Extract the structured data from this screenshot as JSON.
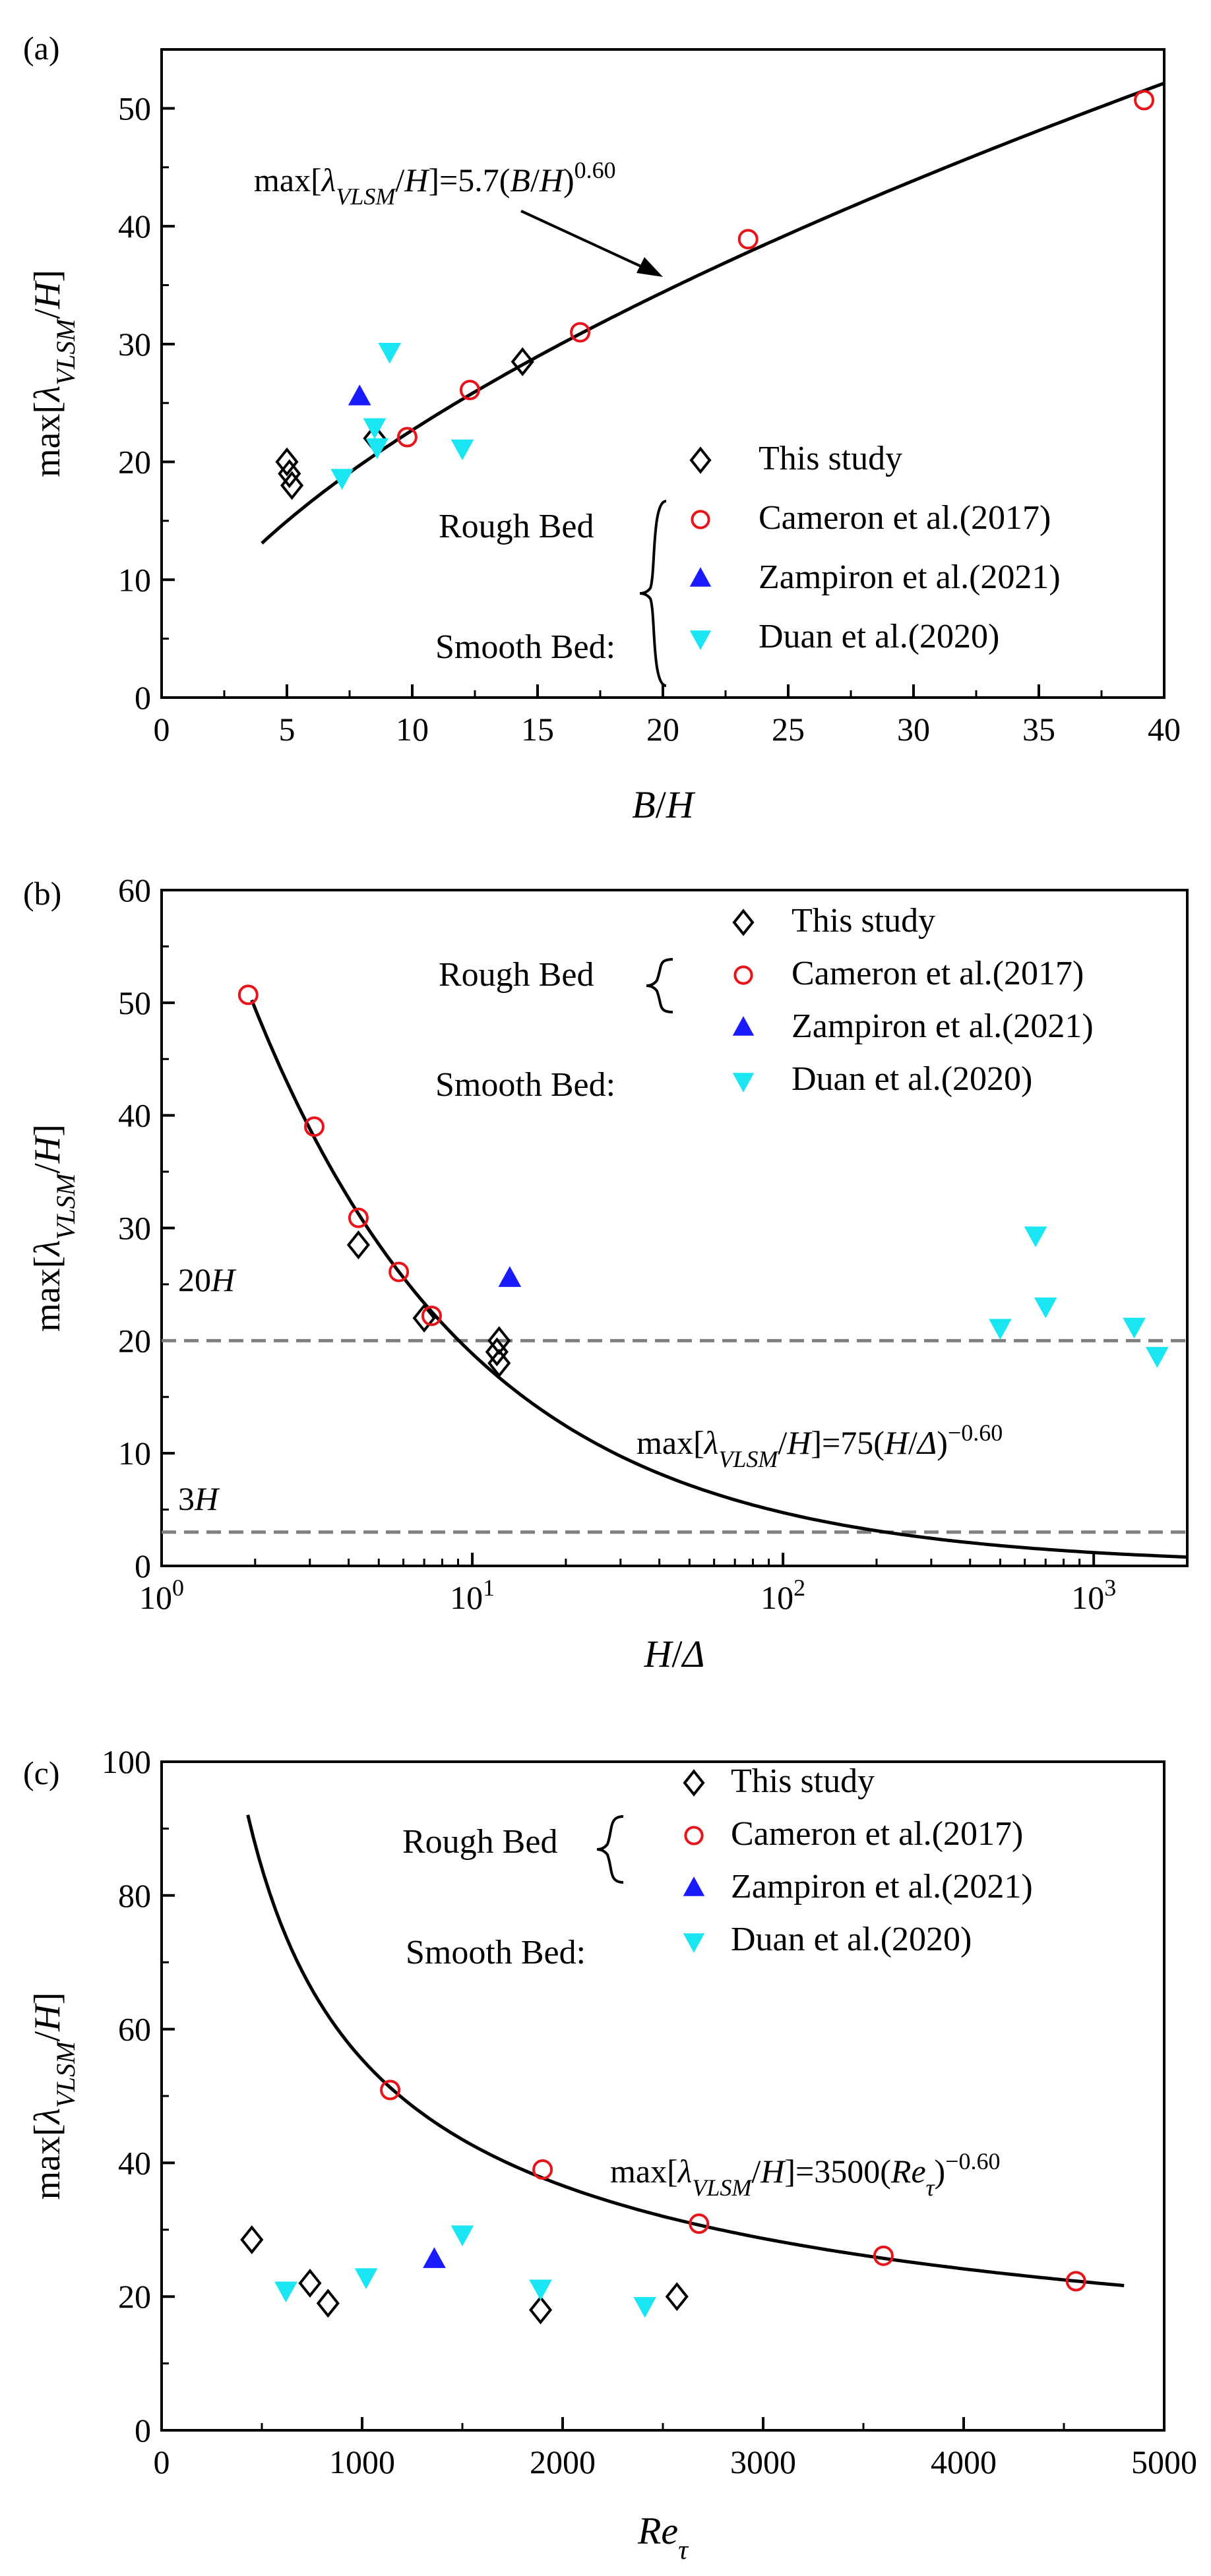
{
  "colors": {
    "axis": "#000000",
    "fit_line": "#000000",
    "dashed": "#7f7f7f",
    "this_study": "#000000",
    "cameron": "#e8141b",
    "zampiron": "#1a1aff",
    "duan": "#19e6f2"
  },
  "legend": {
    "rough_bed": "Rough Bed",
    "smooth_bed": "Smooth Bed:",
    "this_study": "This study",
    "cameron": "Cameron et al.(2017)",
    "zampiron": "Zampiron et al.(2021)",
    "duan": "Duan et al.(2020)"
  },
  "chart_data": [
    {
      "panel": "(a)",
      "type": "scatter",
      "xlabel": "B/H",
      "ylabel": "max[λVLSM/H]",
      "xscale": "linear",
      "xlim": [
        0,
        40
      ],
      "ylim": [
        0,
        55
      ],
      "xticks": [
        0,
        5,
        10,
        15,
        20,
        25,
        30,
        35,
        40
      ],
      "yticks": [
        0,
        10,
        20,
        30,
        40,
        50
      ],
      "fit": {
        "coef": 5.7,
        "exp": 0.6,
        "x_from": 4,
        "x_to": 40,
        "label": "max[λVLSM/H]=5.7(B/H)0.60",
        "label_parts": [
          "max[",
          "λ",
          "VLSM",
          "/",
          "H",
          "]=5.7(",
          "B",
          "/",
          "H",
          ")",
          "0.60"
        ]
      },
      "series": [
        {
          "name": "This study",
          "marker": "diamond",
          "points": [
            [
              5.0,
              20.0
            ],
            [
              5.1,
              19.0
            ],
            [
              5.2,
              18.0
            ],
            [
              8.5,
              22.0
            ],
            [
              14.4,
              28.5
            ]
          ]
        },
        {
          "name": "Cameron et al.(2017)",
          "marker": "circle",
          "points": [
            [
              9.8,
              22.1
            ],
            [
              12.3,
              26.1
            ],
            [
              16.7,
              31.0
            ],
            [
              23.4,
              38.9
            ],
            [
              39.2,
              50.7
            ]
          ]
        },
        {
          "name": "Zampiron et al.(2021)",
          "marker": "triangle-up",
          "points": [
            [
              7.9,
              25.5
            ]
          ]
        },
        {
          "name": "Duan et al.(2020)",
          "marker": "triangle-down",
          "points": [
            [
              7.2,
              18.7
            ],
            [
              8.5,
              23.0
            ],
            [
              8.6,
              21.3
            ],
            [
              9.1,
              29.4
            ],
            [
              12.0,
              21.2
            ]
          ]
        }
      ]
    },
    {
      "panel": "(b)",
      "type": "scatter",
      "xlabel": "H/Δ",
      "ylabel": "max[λVLSM/H]",
      "xscale": "log",
      "xlim": [
        1,
        2000
      ],
      "ylim": [
        0,
        60
      ],
      "xticks": [
        1,
        10,
        100,
        1000
      ],
      "xtick_labels": [
        [
          "10",
          "0"
        ],
        [
          "10",
          "1"
        ],
        [
          "10",
          "2"
        ],
        [
          "10",
          "3"
        ]
      ],
      "yticks": [
        0,
        10,
        20,
        30,
        40,
        50,
        60
      ],
      "fit": {
        "coef": 75,
        "exp": -0.6,
        "x_from": 1.95,
        "x_to": 2000,
        "label": "max[λVLSM/H]=75(H/Δ)−0.60",
        "label_parts": [
          "max[",
          "λ",
          "VLSM",
          "/",
          "H",
          "]=75(",
          "H",
          "/",
          "Δ",
          ")",
          "−0.60"
        ]
      },
      "reference_lines": [
        {
          "y": 20,
          "label": "20H",
          "num": "20",
          "var": "H"
        },
        {
          "y": 3,
          "label": "3H",
          "num": "3",
          "var": "H"
        }
      ],
      "series": [
        {
          "name": "This study",
          "marker": "diamond",
          "points": [
            [
              4.3,
              28.5
            ],
            [
              7.0,
              22.0
            ],
            [
              12.2,
              20.0
            ],
            [
              12.0,
              19.0
            ],
            [
              12.2,
              18.0
            ]
          ]
        },
        {
          "name": "Cameron et al.(2017)",
          "marker": "circle",
          "points": [
            [
              1.9,
              50.7
            ],
            [
              3.1,
              39.0
            ],
            [
              4.3,
              30.9
            ],
            [
              5.8,
              26.1
            ],
            [
              7.4,
              22.2
            ]
          ]
        },
        {
          "name": "Zampiron et al.(2021)",
          "marker": "triangle-up",
          "points": [
            [
              13.2,
              25.5
            ]
          ]
        },
        {
          "name": "Duan et al.(2020)",
          "marker": "triangle-down",
          "points": [
            [
              500,
              21.2
            ],
            [
              650,
              29.4
            ],
            [
              700,
              23.1
            ],
            [
              1350,
              21.3
            ],
            [
              1600,
              18.7
            ]
          ]
        }
      ]
    },
    {
      "panel": "(c)",
      "type": "scatter",
      "xlabel": "Reτ",
      "ylabel": "max[λVLSM/H]",
      "xscale": "linear",
      "xlim": [
        0,
        5000
      ],
      "ylim": [
        0,
        100
      ],
      "xticks": [
        0,
        1000,
        2000,
        3000,
        4000,
        5000
      ],
      "yticks": [
        0,
        20,
        40,
        60,
        80,
        100
      ],
      "fit": {
        "coef": 3500,
        "exp": -0.6,
        "x_from": 430,
        "x_to": 4800,
        "label": "max[λVLSM/H]=3500(Reτ)−0.60",
        "label_parts": [
          "max[",
          "λ",
          "VLSM",
          "/",
          "H",
          "]=3500(",
          "Re",
          "τ",
          ")",
          "−0.60"
        ]
      },
      "series": [
        {
          "name": "This study",
          "marker": "diamond",
          "points": [
            [
              450,
              28.5
            ],
            [
              740,
              22.0
            ],
            [
              830,
              19.0
            ],
            [
              1890,
              18.0
            ],
            [
              2570,
              20.0
            ]
          ]
        },
        {
          "name": "Cameron et al.(2017)",
          "marker": "circle",
          "points": [
            [
              1140,
              50.9
            ],
            [
              1900,
              39.0
            ],
            [
              2680,
              30.9
            ],
            [
              3600,
              26.1
            ],
            [
              4560,
              22.3
            ]
          ]
        },
        {
          "name": "Zampiron et al.(2021)",
          "marker": "triangle-up",
          "points": [
            [
              1360,
              25.5
            ]
          ]
        },
        {
          "name": "Duan et al.(2020)",
          "marker": "triangle-down",
          "points": [
            [
              620,
              21.0
            ],
            [
              1020,
              23.0
            ],
            [
              1500,
              29.4
            ],
            [
              1890,
              21.3
            ],
            [
              2410,
              18.7
            ]
          ]
        }
      ]
    }
  ]
}
